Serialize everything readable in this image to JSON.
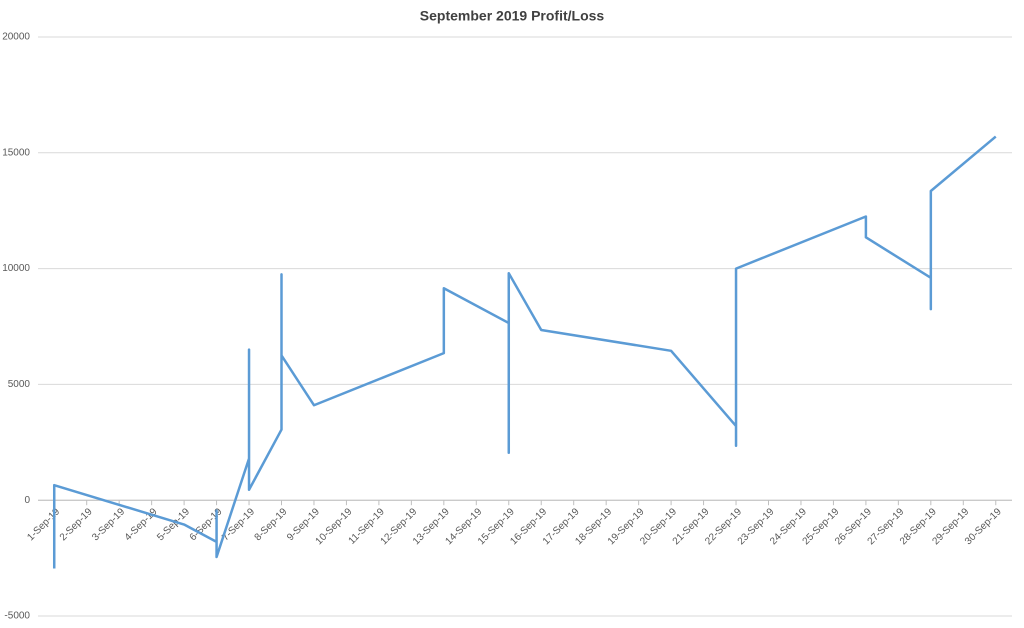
{
  "chart_data": {
    "type": "line",
    "title": "September 2019 Profit/Loss",
    "categories": [
      "1-Sep-19",
      "2-Sep-19",
      "3-Sep-19",
      "4-Sep-19",
      "5-Sep-19",
      "6-Sep-19",
      "7-Sep-19",
      "8-Sep-19",
      "9-Sep-19",
      "10-Sep-19",
      "11-Sep-19",
      "12-Sep-19",
      "13-Sep-19",
      "14-Sep-19",
      "15-Sep-19",
      "16-Sep-19",
      "17-Sep-19",
      "18-Sep-19",
      "19-Sep-19",
      "20-Sep-19",
      "21-Sep-19",
      "22-Sep-19",
      "23-Sep-19",
      "24-Sep-19",
      "25-Sep-19",
      "26-Sep-19",
      "27-Sep-19",
      "28-Sep-19",
      "29-Sep-19",
      "30-Sep-19"
    ],
    "x": [
      "1-Sep-19",
      "1-Sep-19",
      "5-Sep-19",
      "6-Sep-19",
      "6-Sep-19",
      "6-Sep-19",
      "7-Sep-19",
      "7-Sep-19",
      "7-Sep-19",
      "8-Sep-19",
      "8-Sep-19",
      "8-Sep-19",
      "9-Sep-19",
      "13-Sep-19",
      "13-Sep-19",
      "15-Sep-19",
      "15-Sep-19",
      "15-Sep-19",
      "16-Sep-19",
      "20-Sep-19",
      "22-Sep-19",
      "22-Sep-19",
      "22-Sep-19",
      "26-Sep-19",
      "26-Sep-19",
      "28-Sep-19",
      "28-Sep-19",
      "28-Sep-19",
      "30-Sep-19"
    ],
    "values": [
      -2950,
      650,
      -1050,
      -1800,
      -450,
      -2450,
      1800,
      6500,
      450,
      3050,
      9750,
      6250,
      4100,
      6350,
      9150,
      7650,
      2050,
      9800,
      7350,
      6450,
      3200,
      2350,
      10000,
      12250,
      11350,
      9600,
      8250,
      13350,
      15700
    ],
    "color": "#5b9bd5",
    "ylim": [
      -5000,
      20000
    ],
    "yticks": [
      -5000,
      0,
      5000,
      10000,
      15000,
      20000
    ],
    "grid": true
  }
}
